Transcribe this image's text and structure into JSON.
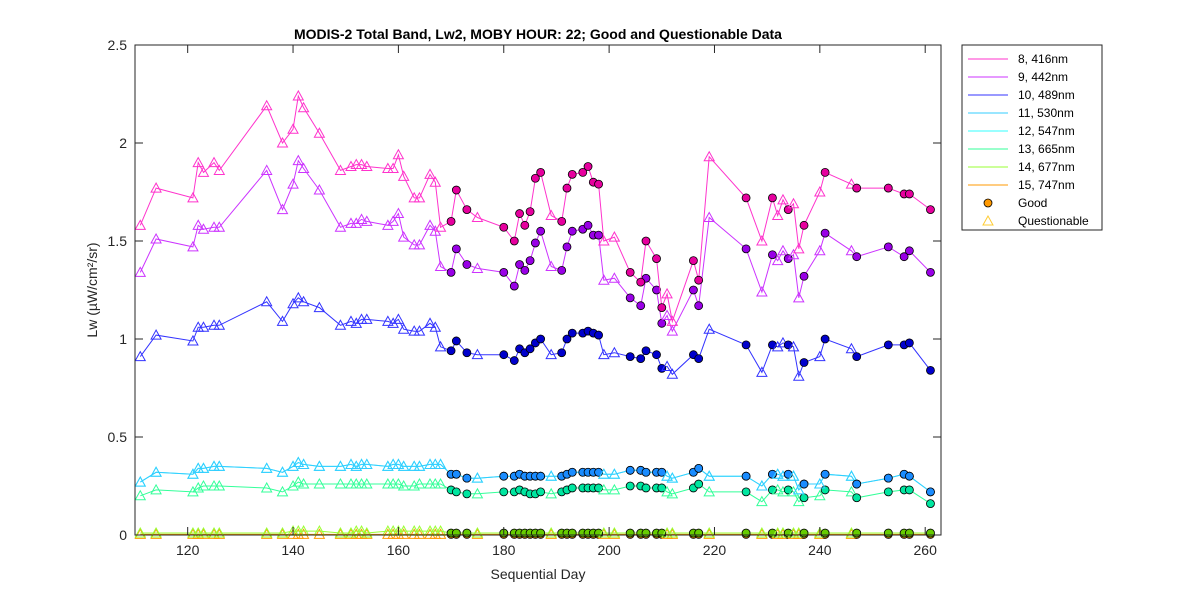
{
  "chart_data": {
    "type": "line",
    "title": "MODIS-2 Total Band,  Lw2, MOBY HOUR: 22;  Good and Questionable Data",
    "xlabel": "Sequential Day",
    "ylabel": "Lw (µW/cm²/sr)",
    "xlim": [
      110,
      263
    ],
    "ylim": [
      0,
      2.5
    ],
    "xticks": [
      120,
      140,
      160,
      180,
      200,
      220,
      240,
      260
    ],
    "yticks": [
      0,
      0.5,
      1,
      1.5,
      2,
      2.5
    ],
    "ytick_labels": [
      "0",
      "0.5",
      "1",
      "1.5",
      "2",
      "2.5"
    ],
    "grid": false,
    "legend_position": "outside-top-right",
    "marker_legend": [
      {
        "name": "Good",
        "marker": "circle",
        "color": "#ff9900"
      },
      {
        "name": "Questionable",
        "marker": "triangle",
        "color": "#ffcc33"
      }
    ],
    "x": [
      111,
      114,
      121,
      122,
      123,
      125,
      126,
      135,
      138,
      140,
      141,
      142,
      145,
      149,
      151,
      152,
      153,
      154,
      158,
      159,
      160,
      161,
      163,
      164,
      166,
      167,
      168,
      170,
      171,
      173,
      175,
      180,
      182,
      183,
      184,
      185,
      186,
      187,
      189,
      191,
      192,
      193,
      195,
      196,
      197,
      198,
      199,
      201,
      204,
      206,
      207,
      209,
      210,
      211,
      212,
      216,
      217,
      219,
      226,
      229,
      231,
      232,
      233,
      234,
      235,
      236,
      237,
      240,
      241,
      246,
      247,
      253,
      256,
      257,
      261
    ],
    "quality": [
      "Q",
      "Q",
      "Q",
      "Q",
      "Q",
      "Q",
      "Q",
      "Q",
      "Q",
      "Q",
      "Q",
      "Q",
      "Q",
      "Q",
      "Q",
      "Q",
      "Q",
      "Q",
      "Q",
      "Q",
      "Q",
      "Q",
      "Q",
      "Q",
      "Q",
      "Q",
      "Q",
      "G",
      "G",
      "G",
      "Q",
      "G",
      "G",
      "G",
      "G",
      "G",
      "G",
      "G",
      "Q",
      "G",
      "G",
      "G",
      "G",
      "G",
      "G",
      "G",
      "Q",
      "Q",
      "G",
      "G",
      "G",
      "G",
      "G",
      "Q",
      "Q",
      "G",
      "G",
      "Q",
      "G",
      "Q",
      "G",
      "Q",
      "Q",
      "G",
      "Q",
      "Q",
      "G",
      "Q",
      "G",
      "Q",
      "G",
      "G",
      "G",
      "G",
      "G"
    ],
    "series": [
      {
        "name": "8, 416nm",
        "color": "#ff33cc",
        "good_color": "#e6009e",
        "values": [
          1.58,
          1.77,
          1.72,
          1.9,
          1.85,
          1.9,
          1.86,
          2.19,
          2.0,
          2.07,
          2.24,
          2.18,
          2.05,
          1.86,
          1.88,
          1.89,
          1.89,
          1.88,
          1.87,
          1.87,
          1.94,
          1.83,
          1.72,
          1.72,
          1.84,
          1.8,
          1.57,
          1.6,
          1.76,
          1.66,
          1.62,
          1.57,
          1.5,
          1.64,
          1.58,
          1.65,
          1.82,
          1.85,
          1.63,
          1.6,
          1.77,
          1.84,
          1.85,
          1.88,
          1.8,
          1.79,
          1.5,
          1.52,
          1.34,
          1.29,
          1.5,
          1.41,
          1.16,
          1.23,
          1.09,
          1.4,
          1.3,
          1.93,
          1.72,
          1.5,
          1.72,
          1.63,
          1.71,
          1.66,
          1.69,
          1.46,
          1.58,
          1.75,
          1.85,
          1.79,
          1.77,
          1.77,
          1.74,
          1.74,
          1.66
        ]
      },
      {
        "name": "9, 442nm",
        "color": "#cc33ff",
        "good_color": "#9900e6",
        "values": [
          1.34,
          1.51,
          1.47,
          1.58,
          1.56,
          1.57,
          1.57,
          1.86,
          1.66,
          1.79,
          1.91,
          1.87,
          1.76,
          1.57,
          1.59,
          1.59,
          1.61,
          1.6,
          1.58,
          1.6,
          1.64,
          1.52,
          1.48,
          1.48,
          1.58,
          1.55,
          1.37,
          1.34,
          1.46,
          1.38,
          1.36,
          1.34,
          1.27,
          1.38,
          1.35,
          1.4,
          1.49,
          1.55,
          1.37,
          1.35,
          1.47,
          1.55,
          1.56,
          1.58,
          1.53,
          1.53,
          1.3,
          1.31,
          1.21,
          1.17,
          1.31,
          1.25,
          1.08,
          1.12,
          1.04,
          1.25,
          1.17,
          1.62,
          1.46,
          1.24,
          1.43,
          1.4,
          1.45,
          1.41,
          1.43,
          1.21,
          1.32,
          1.45,
          1.54,
          1.45,
          1.42,
          1.47,
          1.42,
          1.45,
          1.34
        ]
      },
      {
        "name": "10, 489nm",
        "color": "#3333ff",
        "good_color": "#0000cc",
        "values": [
          0.91,
          1.02,
          0.99,
          1.06,
          1.06,
          1.07,
          1.07,
          1.19,
          1.09,
          1.18,
          1.21,
          1.19,
          1.16,
          1.07,
          1.09,
          1.08,
          1.1,
          1.1,
          1.09,
          1.08,
          1.1,
          1.05,
          1.04,
          1.04,
          1.08,
          1.06,
          0.96,
          0.94,
          0.99,
          0.93,
          0.92,
          0.92,
          0.89,
          0.95,
          0.93,
          0.95,
          0.98,
          1.0,
          0.92,
          0.93,
          1.0,
          1.03,
          1.03,
          1.04,
          1.03,
          1.02,
          0.92,
          0.93,
          0.91,
          0.9,
          0.94,
          0.92,
          0.85,
          0.86,
          0.82,
          0.92,
          0.9,
          1.05,
          0.97,
          0.83,
          0.97,
          0.96,
          0.98,
          0.97,
          0.96,
          0.81,
          0.88,
          0.91,
          1.0,
          0.95,
          0.91,
          0.97,
          0.97,
          0.98,
          0.84
        ]
      },
      {
        "name": "11, 530nm",
        "color": "#33ccff",
        "good_color": "#1a8cff",
        "values": [
          0.27,
          0.32,
          0.31,
          0.34,
          0.34,
          0.35,
          0.35,
          0.34,
          0.32,
          0.35,
          0.37,
          0.36,
          0.35,
          0.35,
          0.36,
          0.35,
          0.36,
          0.36,
          0.35,
          0.36,
          0.36,
          0.35,
          0.35,
          0.35,
          0.36,
          0.36,
          0.36,
          0.31,
          0.31,
          0.29,
          0.29,
          0.3,
          0.3,
          0.31,
          0.3,
          0.3,
          0.3,
          0.3,
          0.3,
          0.3,
          0.31,
          0.32,
          0.32,
          0.32,
          0.32,
          0.32,
          0.31,
          0.31,
          0.33,
          0.33,
          0.32,
          0.32,
          0.32,
          0.3,
          0.29,
          0.32,
          0.34,
          0.3,
          0.3,
          0.25,
          0.31,
          0.31,
          0.3,
          0.31,
          0.3,
          0.23,
          0.26,
          0.26,
          0.31,
          0.3,
          0.26,
          0.29,
          0.31,
          0.3,
          0.22
        ]
      },
      {
        "name": "12, 547nm",
        "color": "#33ffff",
        "good_color": "#1ab2e6",
        "values": [
          0.27,
          0.32,
          0.31,
          0.34,
          0.34,
          0.35,
          0.35,
          0.34,
          0.32,
          0.35,
          0.37,
          0.36,
          0.35,
          0.35,
          0.36,
          0.35,
          0.36,
          0.36,
          0.35,
          0.36,
          0.36,
          0.35,
          0.35,
          0.35,
          0.36,
          0.36,
          0.36,
          0.31,
          0.31,
          0.29,
          0.29,
          0.3,
          0.3,
          0.31,
          0.3,
          0.3,
          0.3,
          0.3,
          0.3,
          0.3,
          0.31,
          0.32,
          0.32,
          0.32,
          0.32,
          0.32,
          0.31,
          0.31,
          0.33,
          0.33,
          0.32,
          0.32,
          0.32,
          0.3,
          0.29,
          0.32,
          0.34,
          0.3,
          0.3,
          0.25,
          0.31,
          0.31,
          0.3,
          0.31,
          0.3,
          0.23,
          0.26,
          0.26,
          0.31,
          0.3,
          0.26,
          0.29,
          0.31,
          0.3,
          0.22
        ]
      },
      {
        "name": "13, 665nm",
        "color": "#33ff99",
        "good_color": "#00e6a0",
        "values": [
          0.2,
          0.23,
          0.22,
          0.24,
          0.25,
          0.25,
          0.25,
          0.24,
          0.22,
          0.25,
          0.27,
          0.26,
          0.26,
          0.26,
          0.26,
          0.26,
          0.26,
          0.26,
          0.26,
          0.26,
          0.26,
          0.25,
          0.25,
          0.26,
          0.26,
          0.26,
          0.26,
          0.23,
          0.22,
          0.21,
          0.21,
          0.22,
          0.22,
          0.23,
          0.22,
          0.21,
          0.21,
          0.22,
          0.21,
          0.22,
          0.23,
          0.24,
          0.24,
          0.24,
          0.24,
          0.24,
          0.23,
          0.23,
          0.25,
          0.25,
          0.24,
          0.24,
          0.24,
          0.22,
          0.21,
          0.24,
          0.26,
          0.22,
          0.22,
          0.17,
          0.23,
          0.23,
          0.22,
          0.23,
          0.22,
          0.17,
          0.19,
          0.2,
          0.23,
          0.22,
          0.19,
          0.22,
          0.23,
          0.23,
          0.16
        ]
      },
      {
        "name": "14, 677nm",
        "color": "#99ff33",
        "good_color": "#66cc00",
        "values": [
          0.01,
          0.01,
          0.01,
          0.01,
          0.01,
          0.01,
          0.01,
          0.01,
          0.01,
          0.02,
          0.02,
          0.02,
          0.02,
          0.01,
          0.01,
          0.02,
          0.02,
          0.01,
          0.02,
          0.02,
          0.02,
          0.02,
          0.02,
          0.02,
          0.02,
          0.02,
          0.02,
          0.01,
          0.01,
          0.01,
          0.01,
          0.01,
          0.01,
          0.01,
          0.01,
          0.01,
          0.01,
          0.01,
          0.01,
          0.01,
          0.01,
          0.01,
          0.01,
          0.01,
          0.01,
          0.01,
          0.01,
          0.01,
          0.01,
          0.01,
          0.01,
          0.01,
          0.01,
          0.01,
          0.01,
          0.01,
          0.01,
          0.01,
          0.01,
          0.01,
          0.01,
          0.01,
          0.01,
          0.01,
          0.01,
          0.01,
          0.01,
          0.01,
          0.01,
          0.01,
          0.01,
          0.01,
          0.01,
          0.01,
          0.01
        ]
      },
      {
        "name": "15, 747nm",
        "color": "#ff9900",
        "good_color": "#ff9900",
        "values": [
          0.003,
          0.003,
          0.003,
          0.003,
          0.003,
          0.003,
          0.003,
          0.003,
          0.003,
          0.003,
          0.003,
          0.003,
          0.003,
          0.003,
          0.003,
          0.003,
          0.003,
          0.003,
          0.003,
          0.003,
          0.003,
          0.003,
          0.003,
          0.003,
          0.003,
          0.003,
          0.003,
          0.003,
          0.003,
          0.003,
          0.003,
          0.003,
          0.003,
          0.003,
          0.003,
          0.003,
          0.003,
          0.003,
          0.003,
          0.003,
          0.003,
          0.003,
          0.003,
          0.003,
          0.003,
          0.003,
          0.003,
          0.003,
          0.003,
          0.003,
          0.003,
          0.003,
          0.003,
          0.003,
          0.003,
          0.003,
          0.003,
          0.003,
          0.003,
          0.003,
          0.003,
          0.003,
          0.003,
          0.003,
          0.003,
          0.003,
          0.003,
          0.003,
          0.003,
          0.003,
          0.003,
          0.003,
          0.003,
          0.003,
          0.003
        ]
      }
    ]
  }
}
